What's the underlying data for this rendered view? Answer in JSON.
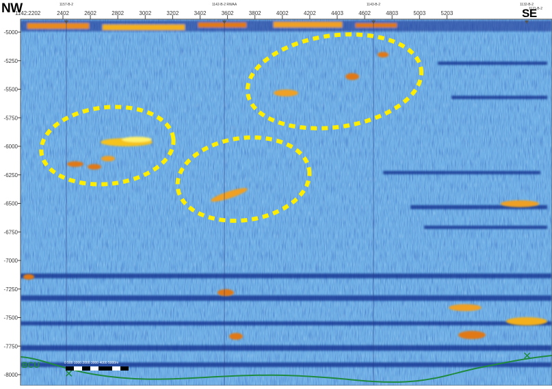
{
  "section": {
    "left_direction": "NW",
    "right_direction": "SE",
    "x_axis": {
      "ticks": [
        "2402",
        "2602",
        "2802",
        "3002",
        "3202",
        "3402",
        "3602",
        "3802",
        "4002",
        "4202",
        "4403",
        "4602",
        "4803",
        "5003",
        "5203"
      ],
      "first_tick": "1142:2202"
    },
    "y_axis": {
      "ticks": [
        "-5000",
        "-5250",
        "-5500",
        "-5750",
        "-6000",
        "-6250",
        "-6500",
        "-6750",
        "-7000",
        "-7250",
        "-7500",
        "-7750",
        "-8000"
      ],
      "range": [
        -8000,
        -5000
      ]
    },
    "well_labels": [
      "1157-B-2",
      "1142-B-2 RWAA",
      "1143-B-2",
      "1132-B-2",
      "1121-B-2"
    ],
    "horizon": {
      "label": "BCU",
      "color": "#1e8a3e"
    },
    "scale_bar": {
      "text": "0 500 1000 2000 3000 4000 5000m"
    },
    "highlight": {
      "shape": "dashed-ellipse",
      "color": "#ffee00",
      "count": 3
    },
    "colors": {
      "background": "#6fb0e6",
      "dark_reflector": "#0d2a8a",
      "bright_amplitude": "#f0a020"
    }
  }
}
